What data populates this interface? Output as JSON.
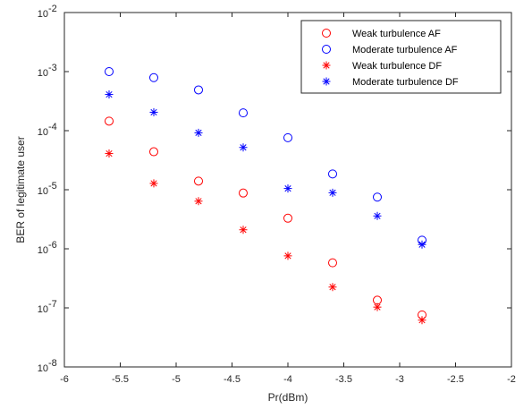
{
  "chart_data": {
    "type": "scatter",
    "title": "",
    "xlabel": "Pr(dBm)",
    "ylabel": "BER of legitimate user",
    "xlim": [
      -6,
      -2
    ],
    "ylim": [
      1e-08,
      0.01
    ],
    "yscale": "log",
    "grid": false,
    "legend_position": "top-right",
    "x_ticks": [
      {
        "value": -6,
        "label": "-6"
      },
      {
        "value": -5.5,
        "label": "-5.5"
      },
      {
        "value": -5,
        "label": "-5"
      },
      {
        "value": -4.5,
        "label": "-4.5"
      },
      {
        "value": -4,
        "label": "-4"
      },
      {
        "value": -3.5,
        "label": "-3.5"
      },
      {
        "value": -3,
        "label": "-3"
      },
      {
        "value": -2.5,
        "label": "-2.5"
      },
      {
        "value": -2,
        "label": "-2"
      }
    ],
    "y_ticks": [
      {
        "exp": -8,
        "base": "10",
        "sup": "-8"
      },
      {
        "exp": -7,
        "base": "10",
        "sup": "-7"
      },
      {
        "exp": -6,
        "base": "10",
        "sup": "-6"
      },
      {
        "exp": -5,
        "base": "10",
        "sup": "-5"
      },
      {
        "exp": -4,
        "base": "10",
        "sup": "-4"
      },
      {
        "exp": -3,
        "base": "10",
        "sup": "-3"
      },
      {
        "exp": -2,
        "base": "10",
        "sup": "-2"
      }
    ],
    "series": [
      {
        "name": "Weak turbulence AF",
        "marker": "circle",
        "color": "#ff0000",
        "x": [
          -5.6,
          -5.2,
          -4.8,
          -4.4,
          -4.0,
          -3.6,
          -3.2,
          -2.8
        ],
        "y": [
          0.000145,
          4.4e-05,
          1.4e-05,
          8.8e-06,
          3.3e-06,
          5.8e-07,
          1.35e-07,
          7.6e-08
        ]
      },
      {
        "name": "Moderate turbulence AF",
        "marker": "circle",
        "color": "#0000ff",
        "x": [
          -5.6,
          -5.2,
          -4.8,
          -4.4,
          -4.0,
          -3.6,
          -3.2,
          -2.8
        ],
        "y": [
          0.001,
          0.00079,
          0.00049,
          0.0002,
          7.6e-05,
          1.85e-05,
          7.5e-06,
          1.4e-06
        ]
      },
      {
        "name": "Weak turbulence DF",
        "marker": "asterisk",
        "color": "#ff0000",
        "x": [
          -5.6,
          -5.2,
          -4.8,
          -4.4,
          -4.0,
          -3.6,
          -3.2,
          -2.8
        ],
        "y": [
          4.1e-05,
          1.28e-05,
          6.4e-06,
          2.1e-06,
          7.6e-07,
          2.25e-07,
          1.03e-07,
          6.2e-08
        ]
      },
      {
        "name": "Moderate turbulence DF",
        "marker": "asterisk",
        "color": "#0000ff",
        "x": [
          -5.6,
          -5.2,
          -4.8,
          -4.4,
          -4.0,
          -3.6,
          -3.2,
          -2.8
        ],
        "y": [
          0.00041,
          0.000205,
          9.2e-05,
          5.2e-05,
          1.05e-05,
          8.9e-06,
          3.6e-06,
          1.18e-06
        ]
      }
    ]
  }
}
